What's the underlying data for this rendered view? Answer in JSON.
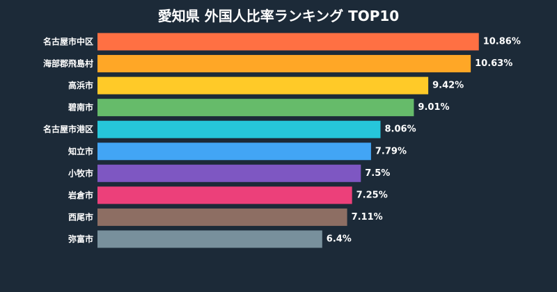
{
  "chart_data": {
    "type": "bar",
    "orientation": "horizontal",
    "title": "愛知県 外国人比率ランキング TOP10",
    "xlabel": "",
    "ylabel": "",
    "xlim": [
      0,
      11.5
    ],
    "grid": false,
    "legend": "none",
    "value_suffix": "%",
    "categories": [
      "名古屋市中区",
      "海部郡飛島村",
      "高浜市",
      "碧南市",
      "名古屋市港区",
      "知立市",
      "小牧市",
      "岩倉市",
      "西尾市",
      "弥富市"
    ],
    "values": [
      10.86,
      10.63,
      9.42,
      9.01,
      8.06,
      7.79,
      7.5,
      7.25,
      7.11,
      6.4
    ],
    "data_labels": [
      "10.86%",
      "10.63%",
      "9.42%",
      "9.01%",
      "8.06%",
      "7.79%",
      "7.5%",
      "7.25%",
      "7.11%",
      "6.4%"
    ],
    "colors": [
      "#ff7043",
      "#ffa726",
      "#ffca28",
      "#66bb6a",
      "#26c6da",
      "#42a5f5",
      "#7e57c2",
      "#ec407a",
      "#8d6e63",
      "#78909c"
    ],
    "background": "#1c2a38",
    "text_color": "#ffffff"
  }
}
